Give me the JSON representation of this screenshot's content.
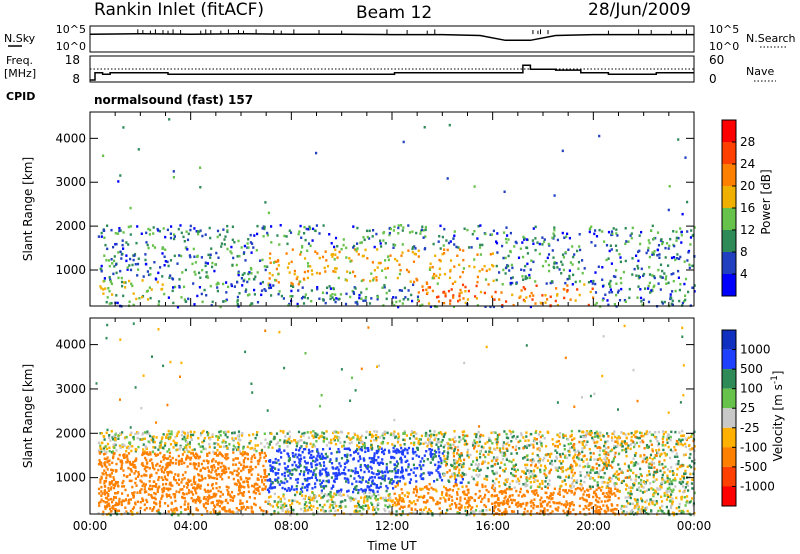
{
  "header": {
    "station": "Rankin Inlet (fitACF)",
    "beam": "Beam 12",
    "date": "28/Jun/2009"
  },
  "side_labels": {
    "nsky": "N.Sky",
    "nsearch": "N.Search",
    "freq": "Freq.",
    "freq_unit": "[MHz]",
    "nave": "Nave",
    "cpid": "CPID"
  },
  "program": "normalsound (fast) 157",
  "chart_data": [
    {
      "type": "line",
      "panel": "noise",
      "series_labels": [
        "N.Sky",
        "N.Search"
      ],
      "left_ticks": [
        "10^5",
        "10^0"
      ],
      "right_ticks": [
        "10^5",
        "10^0"
      ],
      "x_range_hours": [
        0,
        24
      ],
      "baseline_nsky": [
        [
          0,
          3.6
        ],
        [
          2,
          3.7
        ],
        [
          4,
          3.6
        ],
        [
          6,
          3.7
        ],
        [
          8,
          3.6
        ],
        [
          10,
          3.6
        ],
        [
          12,
          3.5
        ],
        [
          14,
          3.5
        ],
        [
          15.5,
          3.3
        ],
        [
          16.5,
          2.2
        ],
        [
          17.5,
          2.2
        ],
        [
          18.5,
          3.3
        ],
        [
          20,
          3.5
        ],
        [
          22,
          3.5
        ],
        [
          24,
          3.5
        ]
      ],
      "spike_times": [
        1.9,
        2.1,
        2.4,
        2.6,
        2.9,
        3.1,
        3.3,
        3.6,
        4.4,
        4.6,
        4.8,
        5.2,
        5.5,
        5.9,
        6.1,
        6.6,
        7.3,
        7.6,
        8.1,
        9.1,
        10.0,
        11.8,
        12.6,
        13.4,
        13.7,
        17.6,
        17.8,
        17.9,
        18.2,
        20.6,
        21.8,
        22.3,
        23.1,
        23.7
      ],
      "spike_peak": 4.7
    },
    {
      "type": "line",
      "panel": "frequency",
      "left_ticks": [
        "18",
        "8"
      ],
      "right_ticks": [
        "60",
        "0"
      ],
      "x_range_hours": [
        0,
        24
      ],
      "freq_mhz_steps": [
        [
          0,
          8.0
        ],
        [
          0.2,
          12.0
        ],
        [
          0.5,
          11.2
        ],
        [
          0.8,
          12.0
        ],
        [
          3.1,
          11.2
        ],
        [
          11.9,
          11.2
        ],
        [
          12.1,
          12.0
        ],
        [
          17.1,
          12.0
        ],
        [
          17.2,
          16.2
        ],
        [
          17.4,
          16.2
        ],
        [
          17.5,
          14.0
        ],
        [
          18.3,
          14.0
        ],
        [
          18.5,
          13.5
        ],
        [
          19.4,
          13.5
        ],
        [
          19.5,
          12.0
        ],
        [
          20.5,
          12.0
        ],
        [
          20.6,
          11.2
        ],
        [
          22.4,
          11.2
        ],
        [
          22.5,
          12.0
        ],
        [
          24,
          12.0
        ]
      ],
      "nave_reference": 30
    },
    {
      "type": "heatmap",
      "panel": "power",
      "ylabel": "Slant Range [km]",
      "y_ticks": [
        1000,
        2000,
        3000,
        4000
      ],
      "ylim": [
        180,
        4600
      ],
      "colorbar_label": "Power [dB]",
      "colorbar_ticks": [
        4,
        8,
        12,
        16,
        20,
        24,
        28
      ],
      "colorbar_colors": [
        "#0000ff",
        "#2040c0",
        "#2e8b57",
        "#66c24a",
        "#f0b000",
        "#ff8000",
        "#ff4000",
        "#ff0000"
      ],
      "scatter_bands": [
        {
          "t0": 0.3,
          "t1": 24,
          "r0": 180,
          "r1": 2050,
          "density": 0.6
        },
        {
          "t0": 0,
          "t1": 24,
          "r0": 2050,
          "r1": 4500,
          "density": 0.01
        }
      ],
      "intense_patches": [
        {
          "t0": 7,
          "t1": 16,
          "r0": 700,
          "r1": 1500,
          "level": 24
        },
        {
          "t0": 13,
          "t1": 20,
          "r0": 250,
          "r1": 700,
          "level": 28
        },
        {
          "t0": 0,
          "t1": 3,
          "r0": 300,
          "r1": 800,
          "level": 20
        },
        {
          "t0": 16,
          "t1": 20,
          "r0": 200,
          "r1": 450,
          "level": 28
        }
      ]
    },
    {
      "type": "heatmap",
      "panel": "velocity",
      "ylabel": "Slant Range [km]",
      "xlabel": "Time UT",
      "x_ticks": [
        "00:00",
        "04:00",
        "08:00",
        "12:00",
        "16:00",
        "20:00",
        "00:00"
      ],
      "y_ticks": [
        1000,
        2000,
        3000,
        4000
      ],
      "ylim": [
        180,
        4600
      ],
      "colorbar_label": "Velocity [m s-1]",
      "colorbar_ticks": [
        1000,
        500,
        100,
        25,
        -25,
        -100,
        -500,
        -1000
      ],
      "colorbar_colors": [
        "#1030c0",
        "#2040ff",
        "#2e8b57",
        "#66c24a",
        "#c8c8c8",
        "#ffb000",
        "#ff8000",
        "#ff4000",
        "#ff0000"
      ],
      "regions": [
        {
          "t0": 0,
          "t1": 7,
          "r0": 250,
          "r1": 1600,
          "velocity": -300
        },
        {
          "t0": 7,
          "t1": 15,
          "r0": 700,
          "r1": 1700,
          "velocity": 400
        },
        {
          "t0": 12,
          "t1": 16,
          "r0": 300,
          "r1": 900,
          "velocity": -200
        },
        {
          "t0": 16,
          "t1": 21,
          "r0": 200,
          "r1": 800,
          "velocity": -300
        },
        {
          "t0": 14,
          "t1": 24,
          "r0": 1000,
          "r1": 2000,
          "velocity": 0
        }
      ]
    }
  ]
}
